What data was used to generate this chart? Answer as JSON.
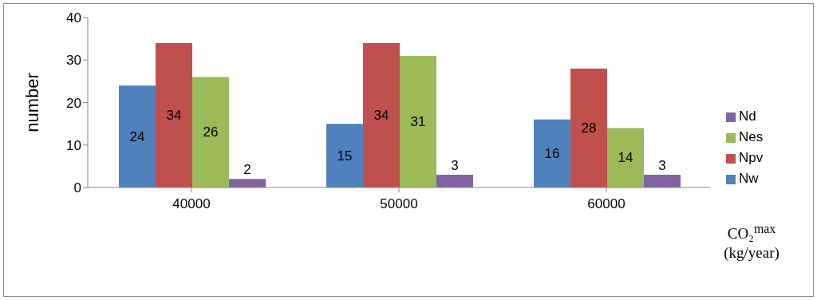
{
  "chart_data": {
    "type": "bar",
    "ylabel": "number",
    "xlabel": "CO₂$^{max}$\n(kg/year)",
    "categories": [
      "40000",
      "50000",
      "60000"
    ],
    "series": [
      {
        "name": "Nw",
        "color": "#4f81bd",
        "values": [
          24,
          15,
          16
        ]
      },
      {
        "name": "Npv",
        "color": "#c0504d",
        "values": [
          34,
          34,
          28
        ]
      },
      {
        "name": "Nes",
        "color": "#9bbb59",
        "values": [
          26,
          31,
          14
        ]
      },
      {
        "name": "Nd",
        "color": "#8064a2",
        "values": [
          2,
          3,
          3
        ]
      }
    ],
    "ylim": [
      0,
      40
    ],
    "yticks": [
      0,
      10,
      20,
      30,
      40
    ],
    "grid": false,
    "legend": "right",
    "data_labels": true
  }
}
